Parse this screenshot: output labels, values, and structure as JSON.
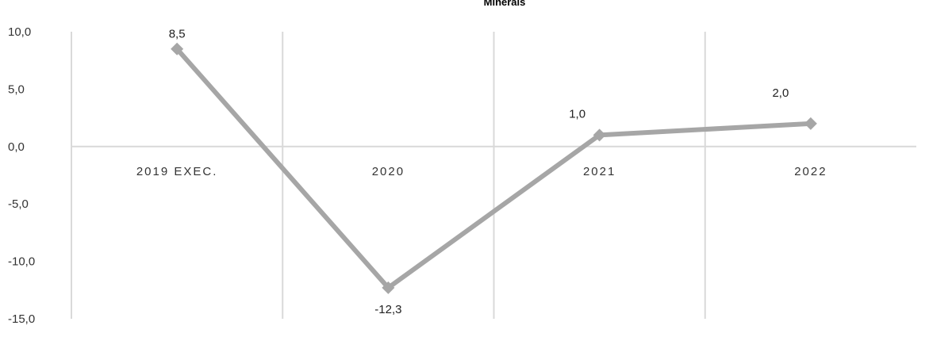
{
  "chart_data": {
    "type": "line",
    "title": "Minerais",
    "xlabel": "",
    "ylabel": "",
    "categories": [
      "2019 EXEC.",
      "2020",
      "2021",
      "2022"
    ],
    "series": [
      {
        "values": [
          8.5,
          -12.3,
          1.0,
          2.0
        ],
        "labels": [
          "8,5",
          "-12,3",
          "1,0",
          "2,0"
        ]
      }
    ],
    "ylim": [
      -15,
      10
    ],
    "yticks": [
      10,
      5,
      0,
      -5,
      -10,
      -15
    ],
    "ytick_labels": [
      "10,0",
      "5,0",
      "0,0",
      "-5,0",
      "-10,0",
      "-15,0"
    ],
    "grid": true,
    "legend": "none",
    "colors": {
      "series": "#a6a6a6",
      "grid": "#d9d9d9",
      "axis": "#d9d9d9"
    }
  }
}
